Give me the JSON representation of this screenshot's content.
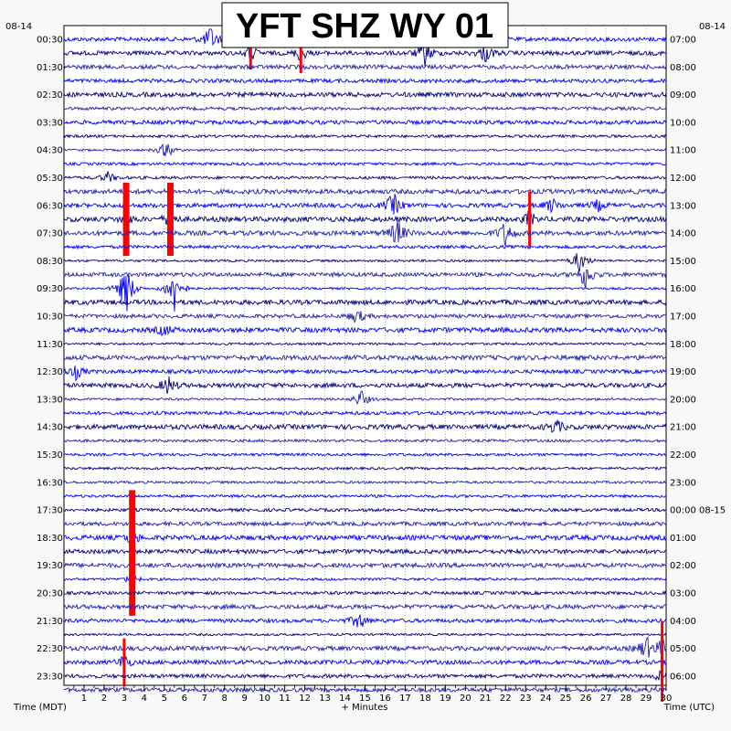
{
  "chart_data": {
    "type": "line",
    "title": "YFT SHZ WY 01",
    "date_left": "08-14",
    "date_right": "08-14",
    "date_right_rollover": "08-15",
    "xlabel": "+ Minutes",
    "xlabel_left": "Time (MDT)",
    "xlabel_right": "Time (UTC)",
    "x_range": [
      0,
      30
    ],
    "x_ticks": [
      "1",
      "2",
      "3",
      "4",
      "5",
      "6",
      "7",
      "8",
      "9",
      "10",
      "11",
      "12",
      "13",
      "14",
      "15",
      "16",
      "17",
      "18",
      "19",
      "20",
      "21",
      "22",
      "23",
      "24",
      "25",
      "26",
      "27",
      "28",
      "29",
      "30"
    ],
    "left_time_labels": [
      "00:30",
      "01:30",
      "02:30",
      "03:30",
      "04:30",
      "05:30",
      "06:30",
      "07:30",
      "08:30",
      "09:30",
      "10:30",
      "11:30",
      "12:30",
      "13:30",
      "14:30",
      "15:30",
      "16:30",
      "17:30",
      "18:30",
      "19:30",
      "20:30",
      "21:30",
      "22:30",
      "23:30"
    ],
    "right_time_labels": [
      "07:00",
      "08:00",
      "09:00",
      "10:00",
      "11:00",
      "12:00",
      "13:00",
      "14:00",
      "15:00",
      "16:00",
      "17:00",
      "18:00",
      "19:00",
      "20:00",
      "21:00",
      "22:00",
      "23:00",
      "00:00 08-15",
      "01:00",
      "02:00",
      "03:00",
      "04:00",
      "05:00",
      "06:00"
    ],
    "trace_count": 48,
    "trace_colors": [
      "#0000ff",
      "#000080",
      "#2020b0"
    ],
    "clip_color": "#ff0000",
    "grid": true,
    "events": [
      {
        "trace": 0,
        "minute": 7.3,
        "amp": 14
      },
      {
        "trace": 0,
        "minute": 11.5,
        "amp": 10
      },
      {
        "trace": 1,
        "minute": 9.3,
        "amp": 18,
        "clip": true
      },
      {
        "trace": 1,
        "minute": 11.8,
        "amp": 22,
        "clip": true
      },
      {
        "trace": 1,
        "minute": 18.0,
        "amp": 14
      },
      {
        "trace": 1,
        "minute": 21.0,
        "amp": 10
      },
      {
        "trace": 8,
        "minute": 5.1,
        "amp": 10
      },
      {
        "trace": 10,
        "minute": 2.2,
        "amp": 6
      },
      {
        "trace": 12,
        "minute": 16.4,
        "amp": 14
      },
      {
        "trace": 12,
        "minute": 24.3,
        "amp": 8
      },
      {
        "trace": 12,
        "minute": 26.6,
        "amp": 6
      },
      {
        "trace": 13,
        "minute": 3.1,
        "amp": 40,
        "clip": true
      },
      {
        "trace": 13,
        "minute": 5.3,
        "amp": 40,
        "clip": true
      },
      {
        "trace": 13,
        "minute": 23.2,
        "amp": 30,
        "clip": true
      },
      {
        "trace": 14,
        "minute": 16.6,
        "amp": 16
      },
      {
        "trace": 14,
        "minute": 22.0,
        "amp": 14
      },
      {
        "trace": 16,
        "minute": 25.7,
        "amp": 14
      },
      {
        "trace": 17,
        "minute": 26.0,
        "amp": 16
      },
      {
        "trace": 18,
        "minute": 3.1,
        "amp": 30
      },
      {
        "trace": 18,
        "minute": 5.5,
        "amp": 28
      },
      {
        "trace": 20,
        "minute": 14.6,
        "amp": 8
      },
      {
        "trace": 21,
        "minute": 5.0,
        "amp": 6
      },
      {
        "trace": 24,
        "minute": 0.6,
        "amp": 8
      },
      {
        "trace": 25,
        "minute": 5.2,
        "amp": 10
      },
      {
        "trace": 26,
        "minute": 14.8,
        "amp": 10
      },
      {
        "trace": 28,
        "minute": 24.5,
        "amp": 8
      },
      {
        "trace": 36,
        "minute": 3.4,
        "amp": 52,
        "clip": true
      },
      {
        "trace": 39,
        "minute": 3.4,
        "amp": 40,
        "clip": true
      },
      {
        "trace": 42,
        "minute": 14.7,
        "amp": 10
      },
      {
        "trace": 44,
        "minute": 29.0,
        "amp": 14
      },
      {
        "trace": 44,
        "minute": 29.8,
        "amp": 30,
        "clip": true
      },
      {
        "trace": 45,
        "minute": 3.0,
        "amp": 26,
        "clip": true
      },
      {
        "trace": 46,
        "minute": 29.8,
        "amp": 28,
        "clip": true
      }
    ]
  }
}
